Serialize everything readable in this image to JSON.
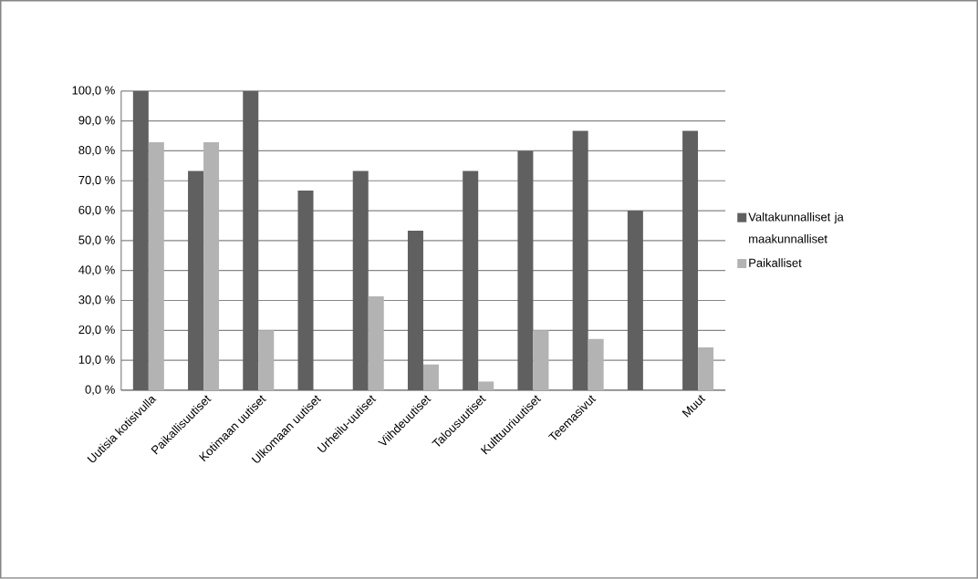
{
  "chart_data": {
    "type": "bar",
    "categories": [
      "Uutisia kotisivulla",
      "Paikallisuutiset",
      "Kotimaan uutiset",
      "Ulkomaan uutiset",
      "Urheilu-uutiset",
      "Viihdeuutiset",
      "Talousuutiset",
      "Kulttuuriuutiset",
      "Teemasivut",
      null,
      "Muut"
    ],
    "series": [
      {
        "name": "Valtakunnalliset ja maakunnalliset",
        "color": "#606060",
        "values": [
          100,
          73.3,
          100,
          66.7,
          73.3,
          53.3,
          73.3,
          80,
          86.7,
          60,
          86.7
        ]
      },
      {
        "name": "Paikalliset",
        "color": "#b3b3b3",
        "values": [
          82.9,
          82.9,
          20,
          0,
          31.4,
          8.6,
          2.9,
          20,
          17.1,
          0,
          14.3
        ]
      }
    ],
    "ylim": [
      0,
      100
    ],
    "yticks": [
      {
        "value": 0,
        "label": "0,0 %"
      },
      {
        "value": 10,
        "label": "10,0 %"
      },
      {
        "value": 20,
        "label": "20,0 %"
      },
      {
        "value": 30,
        "label": "30,0 %"
      },
      {
        "value": 40,
        "label": "40,0 %"
      },
      {
        "value": 50,
        "label": "50,0 %"
      },
      {
        "value": 60,
        "label": "60,0 %"
      },
      {
        "value": 70,
        "label": "70,0 %"
      },
      {
        "value": 80,
        "label": "80,0 %"
      },
      {
        "value": 90,
        "label": "90,0 %"
      },
      {
        "value": 100,
        "label": "100,0 %"
      }
    ],
    "grid": "y",
    "legend": "right"
  }
}
